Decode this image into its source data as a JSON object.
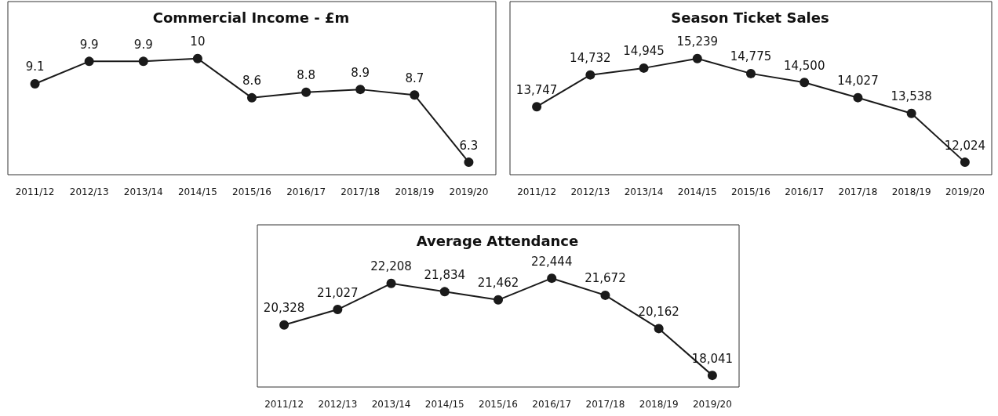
{
  "chart_data": [
    {
      "type": "line",
      "title": "Commercial Income - £m",
      "categories": [
        "2011/12",
        "2012/13",
        "2013/14",
        "2014/15",
        "2015/16",
        "2016/17",
        "2017/18",
        "2018/19",
        "2019/20"
      ],
      "series": [
        {
          "color": "#1a1a1a",
          "values": [
            9.1,
            9.9,
            9.9,
            10,
            8.6,
            8.8,
            8.9,
            8.7,
            6.3
          ],
          "value_labels": [
            "9.1",
            "9.9",
            "9.9",
            "10",
            "8.6",
            "8.8",
            "8.9",
            "8.7",
            "6.3"
          ]
        }
      ],
      "marker": "circle",
      "line_style": "solid"
    },
    {
      "type": "line",
      "title": "Season Ticket Sales",
      "categories": [
        "2011/12",
        "2012/13",
        "2013/14",
        "2014/15",
        "2015/16",
        "2016/17",
        "2017/18",
        "2018/19",
        "2019/20"
      ],
      "series": [
        {
          "color": "#1a1a1a",
          "values": [
            13747,
            14732,
            14945,
            15239,
            14775,
            14500,
            14027,
            13538,
            12024
          ],
          "value_labels": [
            "13,747",
            "14,732",
            "14,945",
            "15,239",
            "14,775",
            "14,500",
            "14,027",
            "13,538",
            "12,024"
          ]
        }
      ],
      "marker": "circle",
      "line_style": "solid"
    },
    {
      "type": "line",
      "title": "Average Attendance",
      "categories": [
        "2011/12",
        "2012/13",
        "2013/14",
        "2014/15",
        "2015/16",
        "2016/17",
        "2017/18",
        "2018/19",
        "2019/20"
      ],
      "series": [
        {
          "color": "#1a1a1a",
          "values": [
            20328,
            21027,
            22208,
            21834,
            21462,
            22444,
            21672,
            20162,
            18041
          ],
          "value_labels": [
            "20,328",
            "21,027",
            "22,208",
            "21,834",
            "21,462",
            "22,444",
            "21,672",
            "20,162",
            "18,041"
          ]
        }
      ],
      "marker": "circle",
      "line_style": "solid"
    }
  ]
}
